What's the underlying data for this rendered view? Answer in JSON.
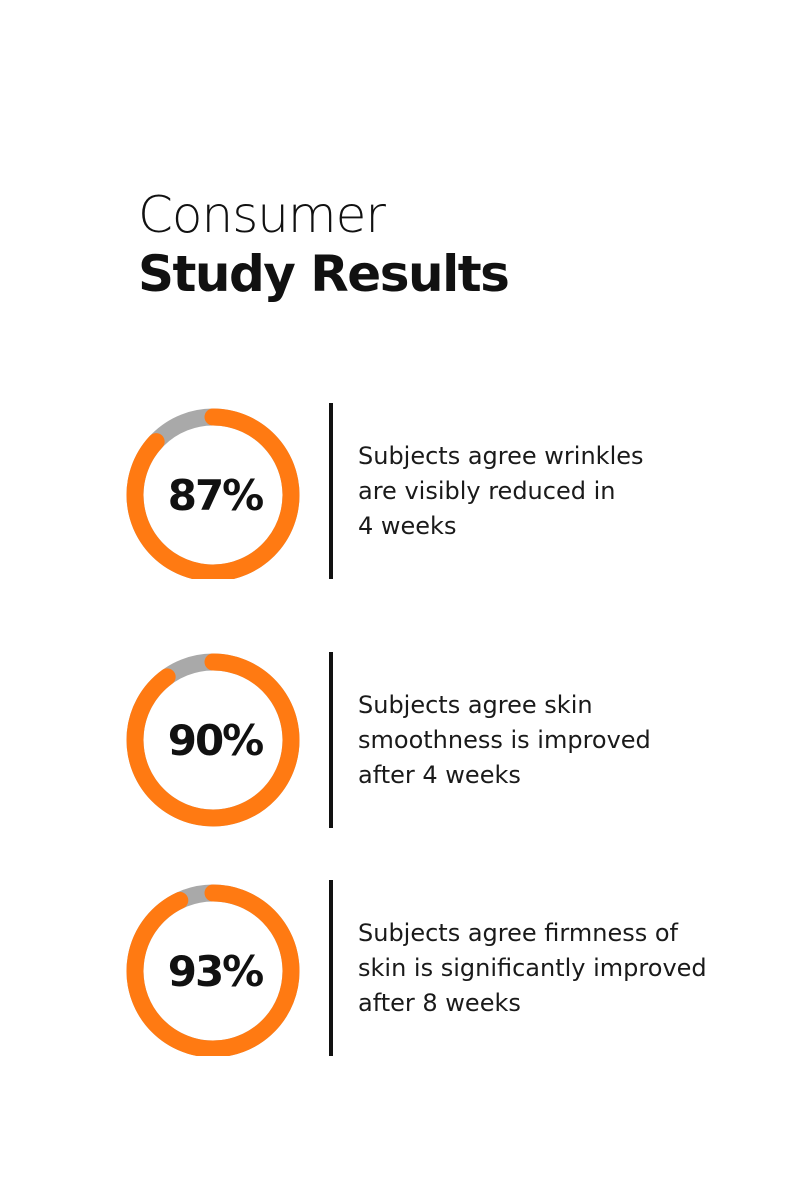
{
  "heading": {
    "line1": "Consumer",
    "line2": "Study Results"
  },
  "colors": {
    "accent": "#FF7A12",
    "track": "#A9A9A9",
    "text": "#111111"
  },
  "chart_data": [
    {
      "type": "pie",
      "label": "87%",
      "value": 87,
      "total": 100,
      "description": [
        "Subjects agree wrinkles",
        "are visibly reduced in",
        "4 weeks"
      ]
    },
    {
      "type": "pie",
      "label": "90%",
      "value": 90,
      "total": 100,
      "description": [
        "Subjects agree skin",
        "smoothness is improved",
        "after 4 weeks"
      ]
    },
    {
      "type": "pie",
      "label": "93%",
      "value": 93,
      "total": 100,
      "description": [
        "Subjects agree firmness of",
        "skin is significantly improved",
        "after 8 weeks"
      ]
    }
  ]
}
